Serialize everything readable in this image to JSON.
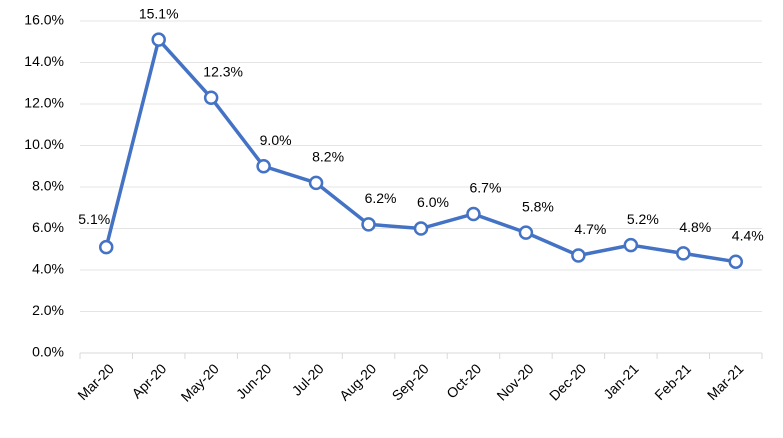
{
  "chart_data": {
    "type": "line",
    "categories": [
      "Mar-20",
      "Apr-20",
      "May-20",
      "Jun-20",
      "Jul-20",
      "Aug-20",
      "Sep-20",
      "Oct-20",
      "Nov-20",
      "Dec-20",
      "Jan-21",
      "Feb-21",
      "Mar-21"
    ],
    "values": [
      5.1,
      15.1,
      12.3,
      9.0,
      8.2,
      6.2,
      6.0,
      6.7,
      5.8,
      4.7,
      5.2,
      4.8,
      4.4
    ],
    "value_labels": [
      "5.1%",
      "15.1%",
      "12.3%",
      "9.0%",
      "8.2%",
      "6.2%",
      "6.0%",
      "6.7%",
      "5.8%",
      "4.7%",
      "5.2%",
      "4.8%",
      "4.4%"
    ],
    "color": "#4472c4",
    "ylim": [
      0,
      16
    ],
    "yticks": [
      {
        "value": 0,
        "label": "0.0%"
      },
      {
        "value": 2,
        "label": "2.0%"
      },
      {
        "value": 4,
        "label": "4.0%"
      },
      {
        "value": 6,
        "label": "6.0%"
      },
      {
        "value": 8,
        "label": "8.0%"
      },
      {
        "value": 10,
        "label": "10.0%"
      },
      {
        "value": 12,
        "label": "12.0%"
      },
      {
        "value": 14,
        "label": "14.0%"
      },
      {
        "value": 16,
        "label": "16.0%"
      }
    ],
    "grid": true
  }
}
